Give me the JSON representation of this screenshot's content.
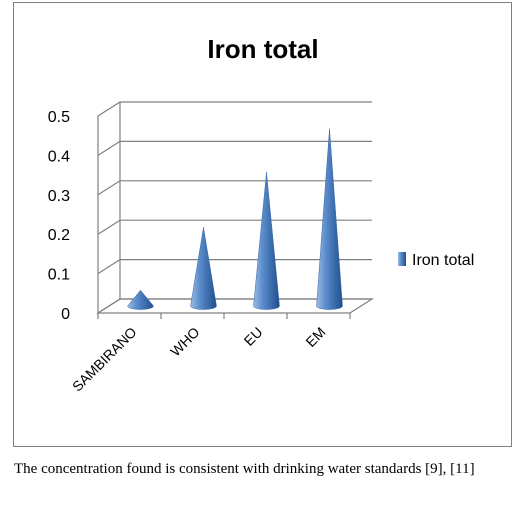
{
  "chart_data": {
    "type": "bar",
    "style": "3d-cone",
    "title": "Iron total",
    "categories": [
      "SAMBIRANO",
      "WHO",
      "EU",
      "EM"
    ],
    "series": [
      {
        "name": "Iron total",
        "values": [
          0.04,
          0.2,
          0.34,
          0.45
        ]
      }
    ],
    "ylim": [
      0,
      0.5
    ],
    "yticks": [
      "0",
      "0.1",
      "0.2",
      "0.3",
      "0.4",
      "0.5"
    ],
    "grid": true,
    "legend_position": "right"
  },
  "colors": {
    "series": "#4a7ebb",
    "grid": "#808080"
  },
  "caption": "The concentration found is consistent with drinking water standards [9], [11]"
}
